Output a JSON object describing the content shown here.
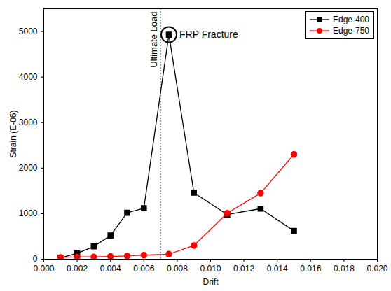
{
  "chart_data": {
    "type": "line",
    "x_label": "Drift",
    "y_label": "Strain (E-06)",
    "x": [
      0.001,
      0.002,
      0.003,
      0.004,
      0.005,
      0.006,
      0.0075,
      0.009,
      0.011,
      0.013,
      0.015
    ],
    "series": [
      {
        "name": "Edge-400",
        "color": "#000000",
        "marker": "square",
        "values": [
          30,
          130,
          280,
          520,
          1020,
          1120,
          4930,
          1460,
          980,
          1110,
          620
        ]
      },
      {
        "name": "Edge-750",
        "color": "#ff0000",
        "marker": "circle",
        "values": [
          40,
          50,
          50,
          60,
          70,
          90,
          110,
          300,
          1010,
          1450,
          2300
        ]
      }
    ],
    "xlim": [
      0,
      0.02
    ],
    "xticks": [
      {
        "value": 0,
        "label": "0.000"
      },
      {
        "value": 0.002,
        "label": "0.002"
      },
      {
        "value": 0.004,
        "label": "0.004"
      },
      {
        "value": 0.006,
        "label": "0.006"
      },
      {
        "value": 0.008,
        "label": "0.008"
      },
      {
        "value": 0.01,
        "label": "0.010"
      },
      {
        "value": 0.012,
        "label": "0.012"
      },
      {
        "value": 0.014,
        "label": "0.014"
      },
      {
        "value": 0.016,
        "label": "0.016"
      },
      {
        "value": 0.018,
        "label": "0.018"
      },
      {
        "value": 0.02,
        "label": "0.020"
      }
    ],
    "ylim": [
      0,
      5500
    ],
    "yticks": [
      0,
      1000,
      2000,
      3000,
      4000,
      5000
    ],
    "legend": "upper right",
    "annotations": [
      {
        "text": "Ultimate Load",
        "x": 0.007
      },
      {
        "text": "FRP Fracture",
        "x": 0.0075,
        "y": 4930
      }
    ]
  }
}
